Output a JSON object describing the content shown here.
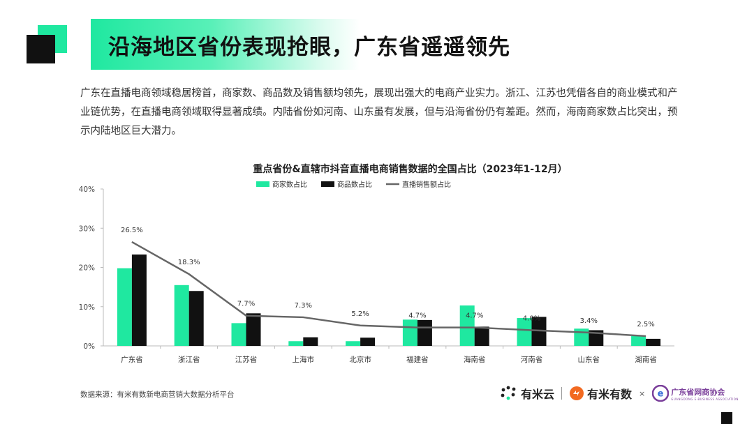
{
  "header": {
    "title": "沿海地区省份表现抢眼，广东省遥遥领先"
  },
  "intro": "广东在直播电商领域稳居榜首，商家数、商品数及销售额均领先，展现出强大的电商产业实力。浙江、江苏也凭借各自的商业模式和产业链优势，在直播电商领域取得显著成绩。内陆省份如河南、山东虽有发展，但与沿海省份仍有差距。然而，海南商家数占比突出，预示内陆地区巨大潜力。",
  "chart_data": {
    "type": "bar",
    "title": "重点省份&直辖市抖音直播电商销售数据的全国占比（2023年1-12月）",
    "categories": [
      "广东省",
      "浙江省",
      "江苏省",
      "上海市",
      "北京市",
      "福建省",
      "海南省",
      "河南省",
      "山东省",
      "湖南省"
    ],
    "series": [
      {
        "name": "商家数占比",
        "type": "bar",
        "color": "#1fe8a0",
        "values": [
          19.8,
          15.5,
          5.8,
          1.2,
          1.2,
          6.7,
          10.3,
          7.1,
          4.4,
          2.5
        ]
      },
      {
        "name": "商品数占比",
        "type": "bar",
        "color": "#111111",
        "values": [
          23.3,
          14.0,
          8.3,
          2.2,
          2.1,
          6.6,
          4.9,
          7.4,
          4.0,
          1.8
        ]
      },
      {
        "name": "直播销售额占比",
        "type": "line",
        "color": "#666666",
        "values": [
          26.5,
          18.3,
          7.7,
          7.3,
          5.2,
          4.7,
          4.7,
          4.0,
          3.4,
          2.5
        ]
      }
    ],
    "data_labels": [
      "26.5%",
      "18.3%",
      "7.7%",
      "7.3%",
      "5.2%",
      "4.7%",
      "4.7%",
      "4.0%",
      "3.4%",
      "2.5%"
    ],
    "y_ticks": [
      "0%",
      "10%",
      "20%",
      "30%",
      "40%"
    ],
    "ylim": [
      0,
      40
    ],
    "legend": "top-center",
    "grid": false
  },
  "footer": {
    "source": "数据来源：有米有数新电商营销大数据分析平台",
    "logo1": "有米云",
    "logo2": "有米有数",
    "logo_x": "×",
    "logo3": "广东省网商协会",
    "logo3_en": "GUANGDONG E-BUSINESS ASSOCIATION",
    "brand_color": "#f26a21",
    "assoc_color": "#7a3e9a"
  }
}
